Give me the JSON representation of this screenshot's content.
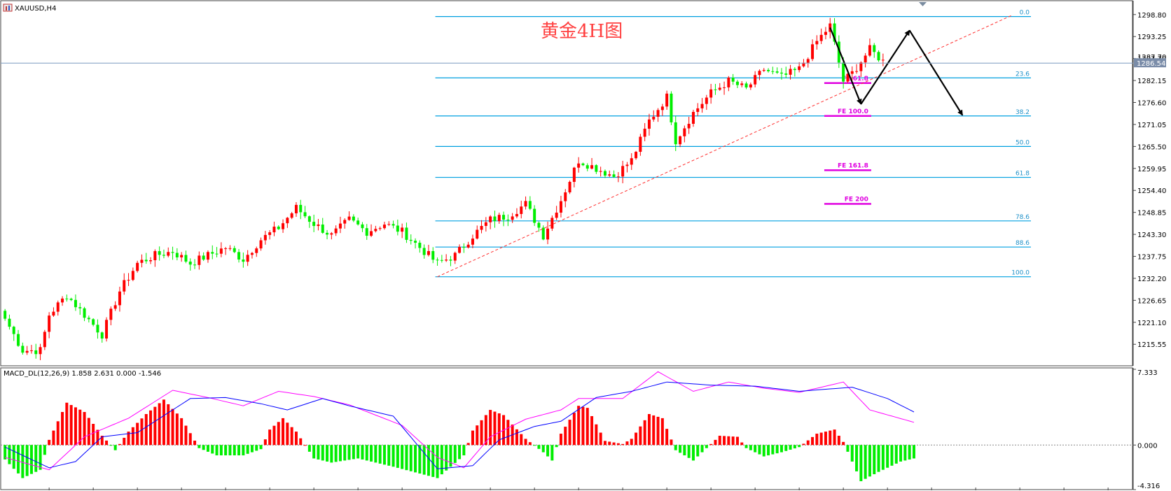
{
  "header": {
    "symbol_label": "XAUUSD,H4"
  },
  "annotation_title": "黄金4H图",
  "current_price_label": "1286.54",
  "hidden_price_label": "1287.70",
  "colors": {
    "bull": "#ff0000",
    "bear": "#00ee00",
    "fib": "#00a0e0",
    "fib_text": "#1e90c8",
    "fe": "#e000e0",
    "trend": "#ff3030",
    "macd_fast": "#0000ff",
    "macd_slow": "#ff00ff",
    "price_line": "#7a9cc0"
  },
  "chart_data": [
    {
      "type": "candlestick",
      "symbol": "XAUUSD",
      "timeframe": "H4",
      "ylim": [
        1211.0,
        1300.0
      ],
      "y_ticks": [
        "1298.80",
        "1293.25",
        "1287.70",
        "1282.15",
        "1276.60",
        "1271.05",
        "1265.50",
        "1259.95",
        "1254.40",
        "1248.85",
        "1243.30",
        "1237.75",
        "1232.20",
        "1226.65",
        "1221.10",
        "1215.55"
      ],
      "y_tick_values": [
        1298.8,
        1293.25,
        1287.7,
        1282.15,
        1276.6,
        1271.05,
        1265.5,
        1259.95,
        1254.4,
        1248.85,
        1243.3,
        1237.75,
        1232.2,
        1226.65,
        1221.1,
        1215.55
      ],
      "current_price": 1286.54,
      "waypoints": [
        [
          0,
          1222
        ],
        [
          4,
          1214
        ],
        [
          8,
          1214
        ],
        [
          10,
          1223
        ],
        [
          14,
          1228
        ],
        [
          18,
          1223
        ],
        [
          22,
          1218
        ],
        [
          26,
          1229
        ],
        [
          30,
          1236
        ],
        [
          34,
          1238
        ],
        [
          38,
          1239
        ],
        [
          42,
          1236
        ],
        [
          46,
          1238
        ],
        [
          50,
          1240
        ],
        [
          54,
          1237
        ],
        [
          58,
          1242
        ],
        [
          62,
          1245
        ],
        [
          66,
          1250
        ],
        [
          70,
          1246
        ],
        [
          74,
          1243
        ],
        [
          78,
          1247
        ],
        [
          82,
          1244
        ],
        [
          86,
          1246
        ],
        [
          90,
          1244
        ],
        [
          94,
          1240
        ],
        [
          98,
          1236
        ],
        [
          102,
          1238
        ],
        [
          106,
          1243
        ],
        [
          110,
          1247
        ],
        [
          114,
          1248
        ],
        [
          118,
          1251
        ],
        [
          122,
          1243
        ],
        [
          126,
          1252
        ],
        [
          130,
          1262
        ],
        [
          134,
          1260
        ],
        [
          138,
          1258
        ],
        [
          142,
          1262
        ],
        [
          146,
          1272
        ],
        [
          150,
          1278
        ],
        [
          152,
          1267
        ],
        [
          156,
          1274
        ],
        [
          160,
          1279
        ],
        [
          164,
          1282
        ],
        [
          168,
          1280
        ],
        [
          172,
          1285
        ],
        [
          176,
          1283
        ],
        [
          180,
          1285
        ],
        [
          184,
          1292
        ],
        [
          187,
          1296
        ],
        [
          190,
          1282
        ],
        [
          192,
          1284
        ],
        [
          196,
          1290
        ],
        [
          199,
          1287
        ]
      ],
      "fib_levels": [
        {
          "label": "0.0",
          "price": 1298.3
        },
        {
          "label": "23.6",
          "price": 1282.8
        },
        {
          "label": "38.2",
          "price": 1273.2
        },
        {
          "label": "50.0",
          "price": 1265.5
        },
        {
          "label": "61.8",
          "price": 1257.7
        },
        {
          "label": "78.6",
          "price": 1246.7
        },
        {
          "label": "88.6",
          "price": 1240.1
        },
        {
          "label": "100.0",
          "price": 1232.6
        }
      ],
      "fe_levels": [
        {
          "label": "FE 61.8",
          "price": 1281.5
        },
        {
          "label": "FE 100.0",
          "price": 1273.2
        },
        {
          "label": "FE 161.8",
          "price": 1259.5
        },
        {
          "label": "FE 200",
          "price": 1251.0
        }
      ],
      "trendline": {
        "from": [
          98,
          1232.6
        ],
        "to": [
          228,
          1298.5
        ]
      },
      "projection_path": [
        [
          187,
          1295.5
        ],
        [
          194,
          1276.2
        ],
        [
          205,
          1294.8
        ],
        [
          217,
          1273.4
        ]
      ]
    },
    {
      "type": "bar",
      "name": "MACD_DL(12,26,9) 1.858 2.631 0.000 -1.546",
      "ylim": [
        -4.316,
        7.333
      ],
      "y_ticks": [
        "7.333",
        "0.000",
        "-4.316"
      ],
      "y_tick_values": [
        7.333,
        0.0,
        -4.316
      ],
      "fast_waypoints": [
        [
          0,
          -0.2
        ],
        [
          10,
          -2.2
        ],
        [
          16,
          -1.6
        ],
        [
          22,
          0.8
        ],
        [
          30,
          1.2
        ],
        [
          42,
          4.5
        ],
        [
          50,
          4.6
        ],
        [
          58,
          4.0
        ],
        [
          64,
          3.4
        ],
        [
          72,
          4.5
        ],
        [
          78,
          3.8
        ],
        [
          88,
          2.8
        ],
        [
          98,
          -2.3
        ],
        [
          106,
          -2.0
        ],
        [
          112,
          0.5
        ],
        [
          120,
          1.8
        ],
        [
          126,
          2.3
        ],
        [
          134,
          4.6
        ],
        [
          142,
          5.2
        ],
        [
          150,
          6.1
        ],
        [
          160,
          5.8
        ],
        [
          170,
          5.7
        ],
        [
          180,
          5.2
        ],
        [
          192,
          5.6
        ],
        [
          200,
          4.5
        ],
        [
          206,
          3.2
        ]
      ],
      "slow_waypoints": [
        [
          0,
          -1.2
        ],
        [
          10,
          -2.4
        ],
        [
          18,
          0.8
        ],
        [
          28,
          2.6
        ],
        [
          38,
          5.3
        ],
        [
          46,
          4.6
        ],
        [
          54,
          3.8
        ],
        [
          62,
          5.2
        ],
        [
          70,
          4.7
        ],
        [
          78,
          3.9
        ],
        [
          90,
          1.9
        ],
        [
          98,
          -1.2
        ],
        [
          104,
          -2.2
        ],
        [
          110,
          0.8
        ],
        [
          118,
          2.5
        ],
        [
          126,
          3.4
        ],
        [
          130,
          4.5
        ],
        [
          140,
          4.5
        ],
        [
          148,
          7.1
        ],
        [
          156,
          5.2
        ],
        [
          164,
          6.1
        ],
        [
          172,
          5.5
        ],
        [
          180,
          5.1
        ],
        [
          190,
          6.1
        ],
        [
          196,
          3.4
        ],
        [
          206,
          2.2
        ]
      ],
      "hist_waypoints": [
        [
          0,
          -1.4
        ],
        [
          4,
          -3.2
        ],
        [
          8,
          -2.4
        ],
        [
          10,
          0.5
        ],
        [
          14,
          4.1
        ],
        [
          18,
          3.2
        ],
        [
          22,
          0.9
        ],
        [
          25,
          -0.5
        ],
        [
          28,
          1.3
        ],
        [
          32,
          3.0
        ],
        [
          36,
          4.4
        ],
        [
          40,
          2.6
        ],
        [
          44,
          -0.3
        ],
        [
          48,
          -1.0
        ],
        [
          54,
          -1.0
        ],
        [
          58,
          -0.4
        ],
        [
          60,
          1.5
        ],
        [
          63,
          2.6
        ],
        [
          66,
          1.3
        ],
        [
          70,
          -1.3
        ],
        [
          74,
          -1.7
        ],
        [
          80,
          -1.3
        ],
        [
          88,
          -2.1
        ],
        [
          98,
          -3.2
        ],
        [
          104,
          -1.0
        ],
        [
          106,
          1.4
        ],
        [
          110,
          3.4
        ],
        [
          113,
          2.9
        ],
        [
          118,
          0.6
        ],
        [
          122,
          -0.7
        ],
        [
          124,
          -1.5
        ],
        [
          126,
          1.1
        ],
        [
          130,
          3.8
        ],
        [
          132,
          3.6
        ],
        [
          136,
          0.4
        ],
        [
          140,
          0.1
        ],
        [
          142,
          0.6
        ],
        [
          146,
          3.0
        ],
        [
          149,
          2.6
        ],
        [
          152,
          -0.5
        ],
        [
          156,
          -1.5
        ],
        [
          160,
          0.1
        ],
        [
          162,
          0.9
        ],
        [
          166,
          0.8
        ],
        [
          168,
          -0.3
        ],
        [
          172,
          -1.1
        ],
        [
          176,
          -0.7
        ],
        [
          180,
          -0.2
        ],
        [
          184,
          1.1
        ],
        [
          188,
          1.5
        ],
        [
          190,
          0.3
        ],
        [
          194,
          -3.5
        ],
        [
          198,
          -2.6
        ],
        [
          203,
          -1.6
        ],
        [
          206,
          -1.3
        ]
      ]
    }
  ]
}
